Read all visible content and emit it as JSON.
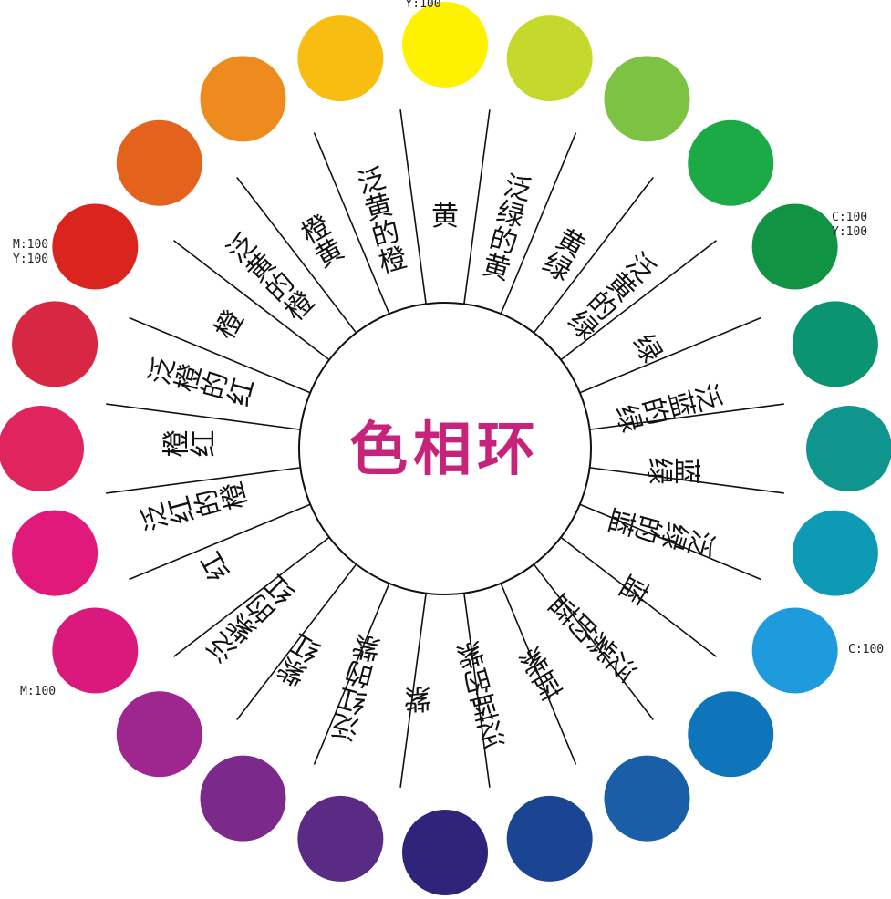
{
  "title": "色相环",
  "segments": [
    {
      "label": "黄",
      "color": "#FFF200"
    },
    {
      "label": "泛绿的黄",
      "color": "#C5D92C"
    },
    {
      "label": "黄绿",
      "color": "#7DC242"
    },
    {
      "label": "泛黄的绿",
      "color": "#1BAA45"
    },
    {
      "label": "绿",
      "color": "#109444"
    },
    {
      "label": "泛蓝的绿",
      "color": "#0A9471"
    },
    {
      "label": "蓝绿",
      "color": "#10958E"
    },
    {
      "label": "泛绿的蓝",
      "color": "#0E9AB4"
    },
    {
      "label": "蓝",
      "color": "#1E9BDC"
    },
    {
      "label": "泛紫的蓝",
      "color": "#0E75BB"
    },
    {
      "label": "蓝紫",
      "color": "#1A5EA8"
    },
    {
      "label": "泛蓝的紫",
      "color": "#1B4593"
    },
    {
      "label": "紫",
      "color": "#2E2479"
    },
    {
      "label": "泛红的紫",
      "color": "#5A2B84"
    },
    {
      "label": "紫红",
      "color": "#7B2A8C"
    },
    {
      "label": "泛紫的红",
      "color": "#9E268F"
    },
    {
      "label": "红",
      "color": "#D9197C"
    },
    {
      "label": "泛红的橙",
      "color": "#E0197A"
    },
    {
      "label": "橙红",
      "color": "#E0245E"
    },
    {
      "label": "泛橙的红",
      "color": "#D72742"
    },
    {
      "label": "橙",
      "color": "#D9251D"
    },
    {
      "label": "泛黄的橙",
      "color": "#E3621C"
    },
    {
      "label": "橙黄",
      "color": "#EE8B1E"
    },
    {
      "label": "泛黄的橙",
      "color": "#F7BD11"
    }
  ],
  "notes": [
    {
      "id": "y100",
      "lines": [
        "Y:100"
      ]
    },
    {
      "id": "c100-y100",
      "lines": [
        "C:100",
        "Y:100"
      ]
    },
    {
      "id": "c100",
      "lines": [
        "C:100"
      ]
    },
    {
      "id": "m100",
      "lines": [
        "M:100"
      ]
    },
    {
      "id": "m100-y100",
      "lines": [
        "M:100",
        "Y:100"
      ]
    }
  ]
}
